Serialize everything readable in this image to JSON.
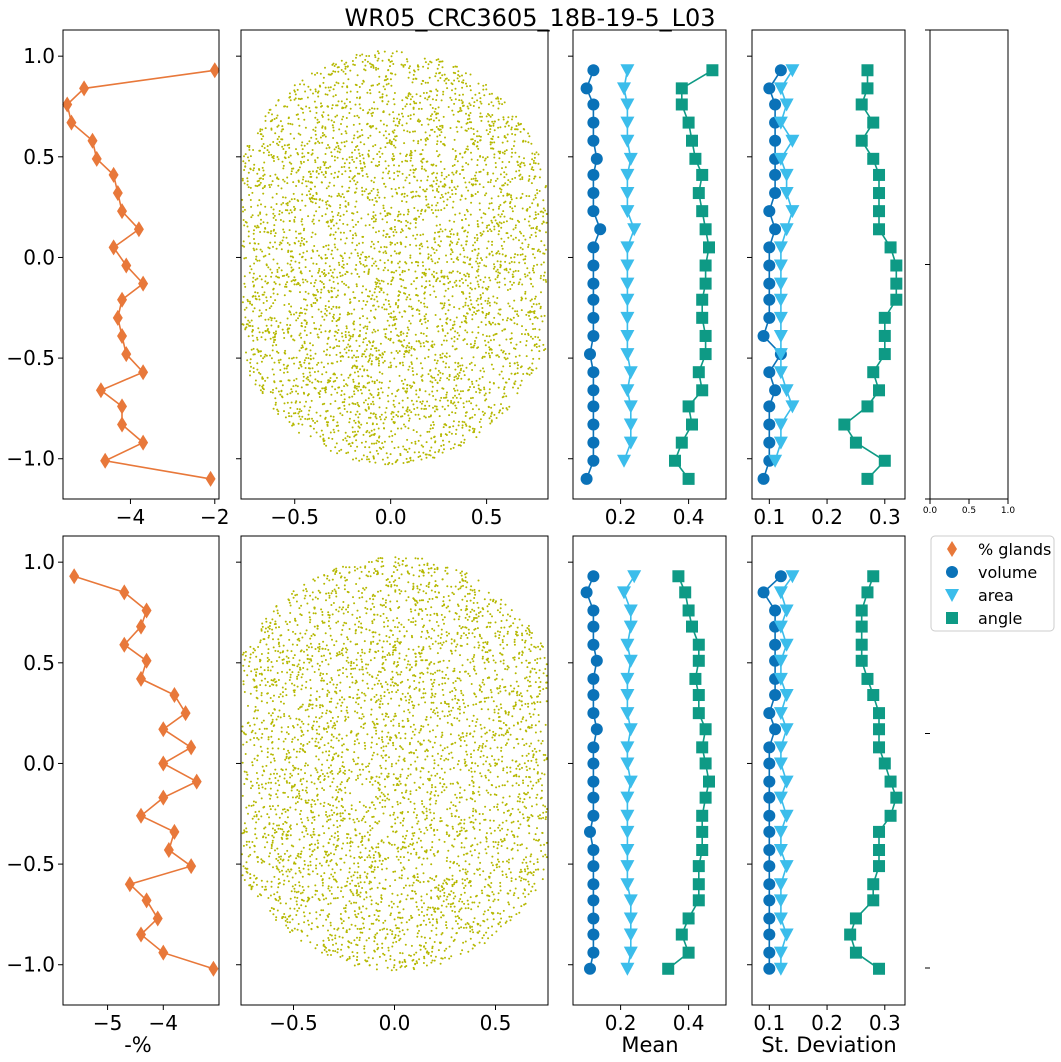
{
  "title": "WR05_CRC3605_18B-19-5_L03",
  "colors": {
    "glands": "#E8783A",
    "volume": "#0A72B8",
    "area": "#3BBDEB",
    "angle": "#0E9A85",
    "scatter": "#B5B800"
  },
  "legend": {
    "glands": "% glands",
    "volume": "volume",
    "area": "area",
    "angle": "angle"
  },
  "x_labels": {
    "pct": "-%",
    "mean": "Mean",
    "std": "St. Deviation"
  },
  "chart_data": [
    {
      "panel": "top-glands",
      "type": "line",
      "series": [
        {
          "name": "% glands",
          "marker": "diamond",
          "y": [
            0.93,
            0.84,
            0.76,
            0.67,
            0.58,
            0.49,
            0.41,
            0.32,
            0.23,
            0.14,
            0.05,
            -0.04,
            -0.13,
            -0.21,
            -0.3,
            -0.39,
            -0.48,
            -0.57,
            -0.66,
            -0.74,
            -0.83,
            -0.92,
            -1.01,
            -1.1
          ],
          "x": [
            -2.0,
            -5.1,
            -5.5,
            -5.4,
            -4.9,
            -4.8,
            -4.4,
            -4.3,
            -4.2,
            -3.8,
            -4.4,
            -4.1,
            -3.7,
            -4.2,
            -4.3,
            -4.2,
            -4.1,
            -3.7,
            -4.7,
            -4.2,
            -4.2,
            -3.7,
            -4.6,
            -2.1
          ]
        }
      ],
      "xlim": [
        -5.6,
        -1.9
      ],
      "ylim": [
        -1.2,
        1.13
      ],
      "xticks": [
        -4,
        -2
      ],
      "yticks": [
        1.0,
        0.5,
        0.0,
        -0.5,
        -1.0
      ]
    },
    {
      "panel": "bottom-glands",
      "type": "line",
      "series": [
        {
          "name": "% glands",
          "marker": "diamond",
          "y": [
            0.93,
            0.85,
            0.76,
            0.68,
            0.59,
            0.51,
            0.42,
            0.34,
            0.25,
            0.17,
            0.08,
            0.0,
            -0.09,
            -0.17,
            -0.26,
            -0.34,
            -0.43,
            -0.51,
            -0.6,
            -0.68,
            -0.77,
            -0.85,
            -0.94,
            -1.02
          ],
          "x": [
            -5.6,
            -4.7,
            -4.3,
            -4.4,
            -4.7,
            -4.3,
            -4.4,
            -3.8,
            -3.6,
            -4.0,
            -3.5,
            -4.0,
            -3.4,
            -4.0,
            -4.4,
            -3.8,
            -3.9,
            -3.5,
            -4.6,
            -4.3,
            -4.1,
            -4.4,
            -4.0,
            -3.1
          ]
        }
      ],
      "xlim": [
        -5.8,
        -3.0
      ],
      "ylim": [
        -1.2,
        1.13
      ],
      "xticks": [
        -5,
        -4
      ],
      "yticks": [
        1.0,
        0.5,
        0.0,
        -0.5,
        -1.0
      ]
    },
    {
      "panel": "top-scatter",
      "type": "scatter",
      "xlim": [
        -0.78,
        0.82
      ],
      "ylim": [
        -1.2,
        1.13
      ],
      "xticks": [
        -0.5,
        0.0,
        0.5
      ],
      "points_approx": 4500
    },
    {
      "panel": "bottom-scatter",
      "type": "scatter",
      "xlim": [
        -0.76,
        0.76
      ],
      "ylim": [
        -1.2,
        1.13
      ],
      "xticks": [
        -0.5,
        0.0,
        0.5
      ],
      "points_approx": 4500
    },
    {
      "panel": "top-mean",
      "type": "line",
      "xlim": [
        0.06,
        0.51
      ],
      "ylim": [
        -1.2,
        1.13
      ],
      "xticks": [
        0.2,
        0.4
      ],
      "series": [
        {
          "name": "volume",
          "marker": "circle",
          "y": [
            0.93,
            0.84,
            0.76,
            0.67,
            0.58,
            0.49,
            0.41,
            0.32,
            0.23,
            0.14,
            0.05,
            -0.04,
            -0.13,
            -0.21,
            -0.3,
            -0.39,
            -0.48,
            -0.57,
            -0.66,
            -0.74,
            -0.83,
            -0.92,
            -1.01,
            -1.1
          ],
          "x": [
            0.12,
            0.1,
            0.12,
            0.12,
            0.12,
            0.13,
            0.12,
            0.12,
            0.12,
            0.14,
            0.12,
            0.12,
            0.12,
            0.12,
            0.12,
            0.12,
            0.11,
            0.12,
            0.12,
            0.12,
            0.12,
            0.12,
            0.12,
            0.1
          ]
        },
        {
          "name": "area",
          "marker": "triangle",
          "y": [
            0.93,
            0.84,
            0.76,
            0.67,
            0.58,
            0.49,
            0.41,
            0.32,
            0.23,
            0.14,
            0.05,
            -0.04,
            -0.13,
            -0.21,
            -0.3,
            -0.39,
            -0.48,
            -0.57,
            -0.66,
            -0.74,
            -0.83,
            -0.92,
            -1.01
          ],
          "x": [
            0.22,
            0.21,
            0.22,
            0.22,
            0.22,
            0.23,
            0.22,
            0.22,
            0.22,
            0.24,
            0.22,
            0.22,
            0.22,
            0.22,
            0.22,
            0.22,
            0.22,
            0.23,
            0.22,
            0.23,
            0.23,
            0.23,
            0.21
          ]
        },
        {
          "name": "angle",
          "marker": "square",
          "y": [
            0.93,
            0.84,
            0.76,
            0.67,
            0.58,
            0.49,
            0.41,
            0.32,
            0.23,
            0.14,
            0.05,
            -0.04,
            -0.13,
            -0.21,
            -0.3,
            -0.39,
            -0.48,
            -0.57,
            -0.66,
            -0.74,
            -0.83,
            -0.92,
            -1.01,
            -1.1
          ],
          "x": [
            0.47,
            0.38,
            0.38,
            0.4,
            0.41,
            0.42,
            0.44,
            0.43,
            0.44,
            0.45,
            0.46,
            0.45,
            0.45,
            0.44,
            0.44,
            0.45,
            0.45,
            0.43,
            0.44,
            0.4,
            0.41,
            0.38,
            0.36,
            0.4
          ]
        }
      ]
    },
    {
      "panel": "bottom-mean",
      "type": "line",
      "xlim": [
        0.06,
        0.51
      ],
      "ylim": [
        -1.2,
        1.13
      ],
      "xticks": [
        0.2,
        0.4
      ],
      "series": [
        {
          "name": "volume",
          "marker": "circle",
          "y": [
            0.93,
            0.85,
            0.76,
            0.68,
            0.59,
            0.51,
            0.42,
            0.34,
            0.25,
            0.17,
            0.08,
            0.0,
            -0.09,
            -0.17,
            -0.26,
            -0.34,
            -0.43,
            -0.51,
            -0.6,
            -0.68,
            -0.77,
            -0.85,
            -0.94,
            -1.02
          ],
          "x": [
            0.12,
            0.1,
            0.12,
            0.12,
            0.12,
            0.13,
            0.12,
            0.12,
            0.12,
            0.13,
            0.12,
            0.12,
            0.12,
            0.12,
            0.12,
            0.11,
            0.12,
            0.12,
            0.12,
            0.12,
            0.12,
            0.12,
            0.12,
            0.11
          ]
        },
        {
          "name": "area",
          "marker": "triangle",
          "y": [
            0.93,
            0.85,
            0.76,
            0.68,
            0.59,
            0.51,
            0.42,
            0.34,
            0.25,
            0.17,
            0.08,
            0.0,
            -0.09,
            -0.17,
            -0.26,
            -0.34,
            -0.43,
            -0.51,
            -0.6,
            -0.68,
            -0.77,
            -0.85,
            -0.94,
            -1.02
          ],
          "x": [
            0.24,
            0.21,
            0.23,
            0.23,
            0.22,
            0.23,
            0.22,
            0.22,
            0.22,
            0.23,
            0.22,
            0.22,
            0.23,
            0.22,
            0.22,
            0.22,
            0.22,
            0.22,
            0.22,
            0.23,
            0.23,
            0.23,
            0.23,
            0.22
          ]
        },
        {
          "name": "angle",
          "marker": "square",
          "y": [
            0.93,
            0.85,
            0.76,
            0.68,
            0.59,
            0.51,
            0.42,
            0.34,
            0.25,
            0.17,
            0.08,
            0.0,
            -0.09,
            -0.17,
            -0.26,
            -0.34,
            -0.43,
            -0.51,
            -0.6,
            -0.68,
            -0.77,
            -0.85,
            -0.94,
            -1.02
          ],
          "x": [
            0.37,
            0.39,
            0.4,
            0.41,
            0.43,
            0.43,
            0.42,
            0.43,
            0.43,
            0.45,
            0.44,
            0.45,
            0.46,
            0.45,
            0.44,
            0.44,
            0.44,
            0.43,
            0.43,
            0.43,
            0.4,
            0.38,
            0.4,
            0.34
          ]
        }
      ]
    },
    {
      "panel": "top-std",
      "type": "line",
      "xlim": [
        0.07,
        0.335
      ],
      "ylim": [
        -1.2,
        1.13
      ],
      "xticks": [
        0.1,
        0.2,
        0.3
      ],
      "series": [
        {
          "name": "volume",
          "marker": "circle",
          "y": [
            0.93,
            0.84,
            0.76,
            0.67,
            0.58,
            0.49,
            0.41,
            0.32,
            0.23,
            0.14,
            0.05,
            -0.04,
            -0.13,
            -0.21,
            -0.3,
            -0.39,
            -0.48,
            -0.57,
            -0.66,
            -0.74,
            -0.83,
            -0.92,
            -1.01,
            -1.1
          ],
          "x": [
            0.12,
            0.1,
            0.11,
            0.11,
            0.11,
            0.11,
            0.11,
            0.11,
            0.1,
            0.11,
            0.1,
            0.1,
            0.1,
            0.1,
            0.1,
            0.09,
            0.12,
            0.1,
            0.11,
            0.1,
            0.1,
            0.1,
            0.1,
            0.09
          ]
        },
        {
          "name": "area",
          "marker": "triangle",
          "y": [
            0.93,
            0.84,
            0.76,
            0.67,
            0.58,
            0.49,
            0.41,
            0.32,
            0.23,
            0.14,
            0.05,
            -0.04,
            -0.13,
            -0.21,
            -0.3,
            -0.39,
            -0.48,
            -0.57,
            -0.66,
            -0.74,
            -0.83,
            -0.92,
            -1.01
          ],
          "x": [
            0.14,
            0.12,
            0.13,
            0.12,
            0.14,
            0.12,
            0.13,
            0.13,
            0.14,
            0.13,
            0.12,
            0.12,
            0.12,
            0.12,
            0.12,
            0.12,
            0.12,
            0.12,
            0.13,
            0.14,
            0.12,
            0.12,
            0.11
          ]
        },
        {
          "name": "angle",
          "marker": "square",
          "y": [
            0.93,
            0.84,
            0.76,
            0.67,
            0.58,
            0.49,
            0.41,
            0.32,
            0.23,
            0.14,
            0.05,
            -0.04,
            -0.13,
            -0.21,
            -0.3,
            -0.39,
            -0.48,
            -0.57,
            -0.66,
            -0.74,
            -0.83,
            -0.92,
            -1.01,
            -1.1
          ],
          "x": [
            0.27,
            0.27,
            0.26,
            0.28,
            0.26,
            0.28,
            0.29,
            0.29,
            0.29,
            0.29,
            0.31,
            0.32,
            0.32,
            0.32,
            0.3,
            0.3,
            0.3,
            0.28,
            0.29,
            0.27,
            0.23,
            0.25,
            0.3,
            0.27
          ]
        }
      ]
    },
    {
      "panel": "bottom-std",
      "type": "line",
      "xlim": [
        0.07,
        0.335
      ],
      "ylim": [
        -1.2,
        1.13
      ],
      "xticks": [
        0.1,
        0.2,
        0.3
      ],
      "series": [
        {
          "name": "volume",
          "marker": "circle",
          "y": [
            0.93,
            0.85,
            0.76,
            0.68,
            0.59,
            0.51,
            0.42,
            0.34,
            0.25,
            0.17,
            0.08,
            0.0,
            -0.09,
            -0.17,
            -0.26,
            -0.34,
            -0.43,
            -0.51,
            -0.6,
            -0.68,
            -0.77,
            -0.85,
            -0.94,
            -1.02
          ],
          "x": [
            0.12,
            0.09,
            0.11,
            0.11,
            0.11,
            0.11,
            0.11,
            0.11,
            0.1,
            0.11,
            0.1,
            0.1,
            0.1,
            0.1,
            0.1,
            0.1,
            0.1,
            0.1,
            0.1,
            0.1,
            0.1,
            0.1,
            0.1,
            0.1
          ]
        },
        {
          "name": "area",
          "marker": "triangle",
          "y": [
            0.93,
            0.85,
            0.76,
            0.68,
            0.59,
            0.51,
            0.42,
            0.34,
            0.25,
            0.17,
            0.08,
            0.0,
            -0.09,
            -0.17,
            -0.26,
            -0.34,
            -0.43,
            -0.51,
            -0.6,
            -0.68,
            -0.77,
            -0.85,
            -0.94,
            -1.02
          ],
          "x": [
            0.14,
            0.12,
            0.13,
            0.12,
            0.13,
            0.12,
            0.12,
            0.13,
            0.12,
            0.13,
            0.12,
            0.12,
            0.13,
            0.12,
            0.13,
            0.12,
            0.12,
            0.13,
            0.12,
            0.12,
            0.12,
            0.13,
            0.12,
            0.12
          ]
        },
        {
          "name": "angle",
          "marker": "square",
          "y": [
            0.93,
            0.85,
            0.76,
            0.68,
            0.59,
            0.51,
            0.42,
            0.34,
            0.25,
            0.17,
            0.08,
            0.0,
            -0.09,
            -0.17,
            -0.26,
            -0.34,
            -0.43,
            -0.51,
            -0.6,
            -0.68,
            -0.77,
            -0.85,
            -0.94,
            -1.02
          ],
          "x": [
            0.28,
            0.27,
            0.26,
            0.26,
            0.26,
            0.26,
            0.27,
            0.28,
            0.29,
            0.29,
            0.29,
            0.3,
            0.31,
            0.32,
            0.31,
            0.29,
            0.29,
            0.29,
            0.28,
            0.28,
            0.25,
            0.24,
            0.25,
            0.29
          ]
        }
      ]
    },
    {
      "panel": "top-empty",
      "type": "line",
      "xlim": [
        0.0,
        1.0
      ],
      "xticks": [
        0.0,
        0.5,
        1.0
      ]
    }
  ]
}
